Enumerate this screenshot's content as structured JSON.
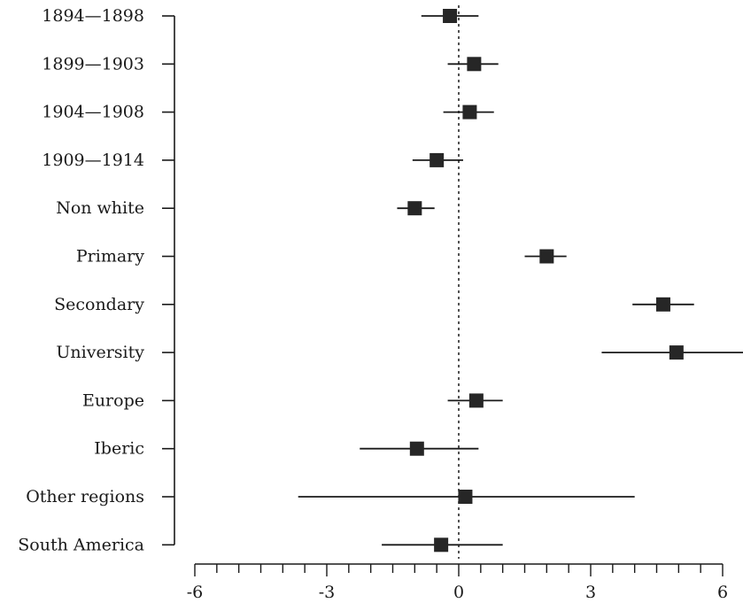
{
  "chart_data": {
    "type": "coefficient_plot",
    "categories": [
      "1894—1898",
      "1899—1903",
      "1904—1908",
      "1909—1914",
      "Non white",
      "Primary",
      "Secondary",
      "University",
      "Europe",
      "Iberic",
      "Other regions",
      "South America"
    ],
    "estimates": [
      -0.2,
      0.35,
      0.25,
      -0.5,
      -1.0,
      2.0,
      4.65,
      4.95,
      0.4,
      -0.95,
      0.15,
      -0.4
    ],
    "ci_low": [
      -0.85,
      -0.25,
      -0.35,
      -1.05,
      -1.4,
      1.5,
      3.95,
      3.25,
      -0.25,
      -2.25,
      -3.65,
      -1.75
    ],
    "ci_high": [
      0.45,
      0.9,
      0.8,
      0.1,
      -0.55,
      2.45,
      5.35,
      6.5,
      1.0,
      0.45,
      4.0,
      1.0
    ],
    "xlim": [
      -6,
      6
    ],
    "xticks": [
      -6,
      -3,
      0,
      3,
      6
    ],
    "reference_line": 0,
    "title": "",
    "xlabel": "",
    "ylabel": "",
    "grid": false,
    "colors": {
      "marker": "#262626",
      "line": "#1a1a1a",
      "axis": "#1a1a1a"
    }
  }
}
